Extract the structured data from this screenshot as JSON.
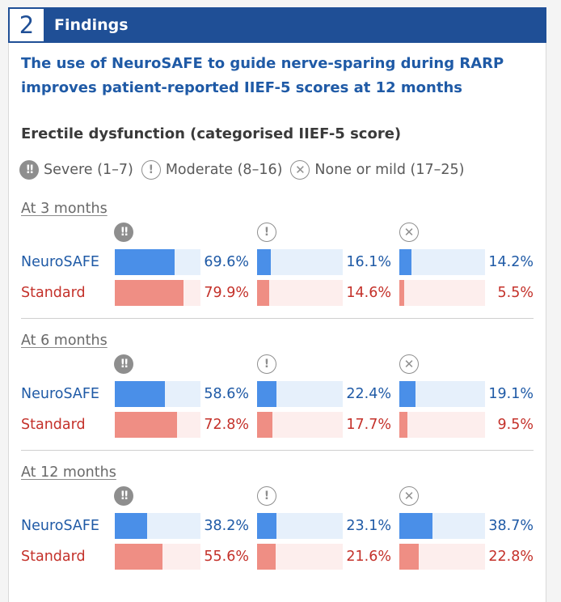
{
  "header": {
    "number": "2",
    "title": "Findings"
  },
  "subtitle_line1": "The use of NeuroSAFE to guide nerve-sparing during RARP",
  "subtitle_line2": "improves patient-reported IIEF-5 scores at 12 months",
  "chart_data": {
    "type": "bar",
    "title": "Erectile dysfunction (categorised IIEF-5 score)",
    "unit": "%",
    "categories": [
      {
        "key": "severe",
        "label": "Severe (1–7)",
        "icon": "double-exclamation-icon",
        "glyph": "!!"
      },
      {
        "key": "moderate",
        "label": "Moderate (8–16)",
        "icon": "exclamation-icon",
        "glyph": "!"
      },
      {
        "key": "none",
        "label": "None or mild (17–25)",
        "icon": "cross-icon",
        "glyph": "✕"
      }
    ],
    "groups": [
      "NeuroSAFE",
      "Standard"
    ],
    "colors": {
      "NeuroSAFE": "#4a8fe8",
      "Standard": "#ef8e84",
      "NeuroSAFE_text": "#1f5aa6",
      "Standard_text": "#c4312a"
    },
    "periods": [
      {
        "label": "At 3 months",
        "series": [
          {
            "name": "NeuroSAFE",
            "values": [
              69.6,
              16.1,
              14.2
            ],
            "labels": [
              "69.6%",
              "16.1%",
              "14.2%"
            ]
          },
          {
            "name": "Standard",
            "values": [
              79.9,
              14.6,
              5.5
            ],
            "labels": [
              "79.9%",
              "14.6%",
              "5.5%"
            ]
          }
        ]
      },
      {
        "label": "At 6 months",
        "series": [
          {
            "name": "NeuroSAFE",
            "values": [
              58.6,
              22.4,
              19.1
            ],
            "labels": [
              "58.6%",
              "22.4%",
              "19.1%"
            ]
          },
          {
            "name": "Standard",
            "values": [
              72.8,
              17.7,
              9.5
            ],
            "labels": [
              "72.8%",
              "17.7%",
              "9.5%"
            ]
          }
        ]
      },
      {
        "label": "At 12 months",
        "series": [
          {
            "name": "NeuroSAFE",
            "values": [
              38.2,
              23.1,
              38.7
            ],
            "labels": [
              "38.2%",
              "23.1%",
              "38.7%"
            ]
          },
          {
            "name": "Standard",
            "values": [
              55.6,
              21.6,
              22.8
            ],
            "labels": [
              "55.6%",
              "21.6%",
              "22.8%"
            ]
          }
        ]
      }
    ]
  }
}
